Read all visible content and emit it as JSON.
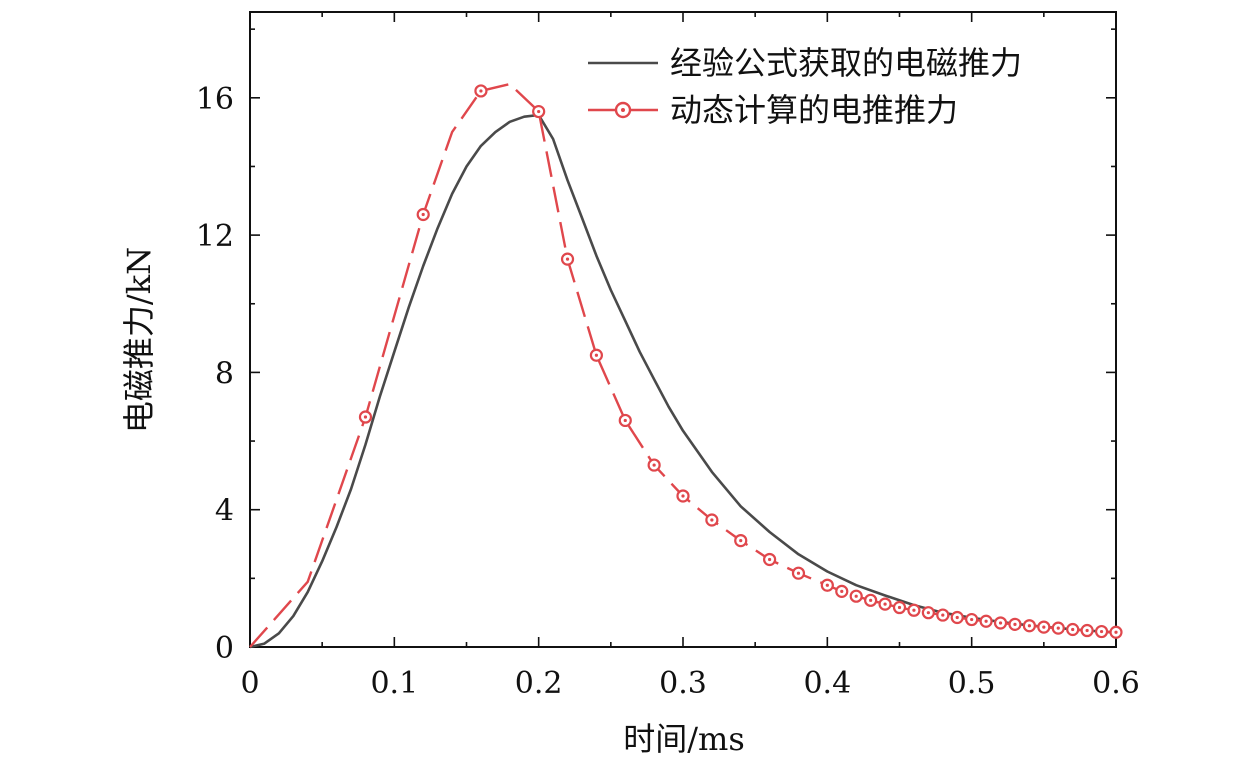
{
  "chart_data": {
    "type": "line",
    "xlabel": "时间/ms",
    "ylabel": "电磁推力/kN",
    "xlim": [
      0,
      0.6
    ],
    "ylim": [
      0,
      18.5
    ],
    "x_ticks": [
      "0",
      "0.1",
      "0.2",
      "0.3",
      "0.4",
      "0.5",
      "0.6"
    ],
    "y_ticks": [
      "0",
      "4",
      "8",
      "12",
      "16"
    ],
    "grid": false,
    "legend_position": "top-right",
    "series": [
      {
        "name": "经验公式获取的电磁推力",
        "color": "#4a4a4a",
        "style": "solid",
        "x": [
          0,
          0.01,
          0.02,
          0.03,
          0.04,
          0.05,
          0.06,
          0.07,
          0.08,
          0.09,
          0.1,
          0.11,
          0.12,
          0.13,
          0.14,
          0.15,
          0.16,
          0.17,
          0.18,
          0.19,
          0.2,
          0.21,
          0.22,
          0.23,
          0.24,
          0.25,
          0.26,
          0.27,
          0.28,
          0.29,
          0.3,
          0.32,
          0.34,
          0.36,
          0.38,
          0.4,
          0.42,
          0.44,
          0.46,
          0.48,
          0.5,
          0.52,
          0.54,
          0.56,
          0.58,
          0.6
        ],
        "y": [
          0,
          0.1,
          0.4,
          0.9,
          1.6,
          2.5,
          3.5,
          4.6,
          5.9,
          7.3,
          8.6,
          9.9,
          11.1,
          12.2,
          13.2,
          14.0,
          14.6,
          15.0,
          15.3,
          15.45,
          15.5,
          14.8,
          13.6,
          12.5,
          11.4,
          10.4,
          9.5,
          8.6,
          7.8,
          7.0,
          6.3,
          5.1,
          4.1,
          3.35,
          2.7,
          2.2,
          1.8,
          1.5,
          1.22,
          1.0,
          0.85,
          0.73,
          0.63,
          0.55,
          0.48,
          0.42
        ]
      },
      {
        "name": "动态计算的电推推力",
        "color": "#e0474c",
        "style": "dashed-circle-markers",
        "x": [
          0,
          0.04,
          0.08,
          0.12,
          0.14,
          0.16,
          0.18,
          0.2,
          0.22,
          0.24,
          0.26,
          0.28,
          0.3,
          0.32,
          0.34,
          0.36,
          0.38,
          0.4,
          0.41,
          0.42,
          0.43,
          0.44,
          0.45,
          0.46,
          0.47,
          0.48,
          0.49,
          0.5,
          0.51,
          0.52,
          0.53,
          0.54,
          0.55,
          0.56,
          0.57,
          0.58,
          0.59,
          0.6
        ],
        "y": [
          0,
          1.9,
          6.7,
          12.6,
          15.0,
          16.2,
          16.4,
          15.6,
          11.3,
          8.5,
          6.6,
          5.3,
          4.4,
          3.7,
          3.1,
          2.55,
          2.15,
          1.8,
          1.62,
          1.48,
          1.36,
          1.25,
          1.15,
          1.07,
          1.0,
          0.93,
          0.86,
          0.8,
          0.75,
          0.7,
          0.66,
          0.62,
          0.58,
          0.55,
          0.51,
          0.48,
          0.45,
          0.43
        ],
        "marker_x": [
          0.08,
          0.12,
          0.16,
          0.2,
          0.22,
          0.24,
          0.26,
          0.28,
          0.3,
          0.32,
          0.34,
          0.36,
          0.38,
          0.4,
          0.41,
          0.42,
          0.43,
          0.44,
          0.45,
          0.46,
          0.47,
          0.48,
          0.49,
          0.5,
          0.51,
          0.52,
          0.53,
          0.54,
          0.55,
          0.56,
          0.57,
          0.58,
          0.59,
          0.6
        ],
        "marker_y": [
          6.7,
          12.6,
          16.2,
          15.6,
          11.3,
          8.5,
          6.6,
          5.3,
          4.4,
          3.7,
          3.1,
          2.55,
          2.15,
          1.8,
          1.62,
          1.48,
          1.36,
          1.25,
          1.15,
          1.07,
          1.0,
          0.93,
          0.86,
          0.8,
          0.75,
          0.7,
          0.66,
          0.62,
          0.58,
          0.55,
          0.51,
          0.48,
          0.45,
          0.43
        ]
      }
    ]
  }
}
